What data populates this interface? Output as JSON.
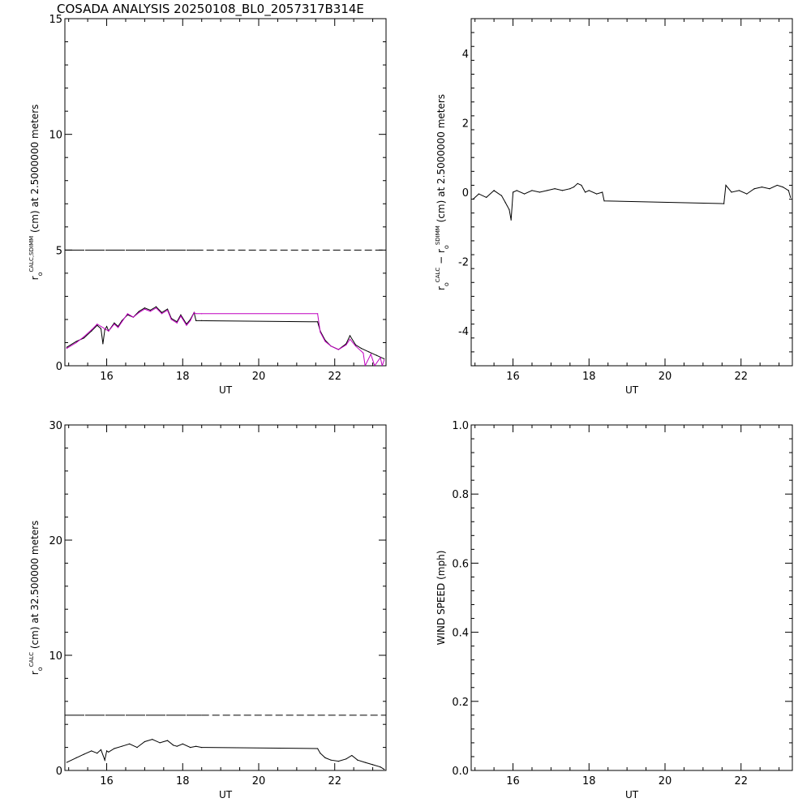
{
  "title": "COSADA ANALYSIS 20250108_BL0_2057317B314E",
  "colors": {
    "axes": "#000000",
    "sdimm_series": "#c000c0",
    "calc_series": "#000000",
    "background": "#ffffff"
  },
  "chart_data": [
    {
      "id": "top-left",
      "type": "line",
      "xlim": [
        14.9,
        23.35
      ],
      "ylim": [
        0,
        15
      ],
      "xticks": [
        16,
        18,
        20,
        22
      ],
      "yticks": [
        0,
        5,
        10,
        15
      ],
      "xlabel": "UT",
      "ylabel": {
        "symbol": "r",
        "sub": "o",
        "sup": "CALC,SDIMM",
        "rest": "(cm)  at  2.5000000 meters"
      },
      "reference_line": {
        "y": 5,
        "dash_start_x": 18.35
      },
      "series": [
        {
          "color": "#000000",
          "x": [
            14.95,
            15.2,
            15.4,
            15.6,
            15.75,
            15.85,
            15.9,
            15.95,
            16.0,
            16.05,
            16.2,
            16.3,
            16.4,
            16.55,
            16.7,
            16.85,
            17.0,
            17.15,
            17.3,
            17.45,
            17.6,
            17.7,
            17.85,
            17.95,
            18.1,
            18.2,
            18.3,
            18.35,
            18.5,
            21.55,
            21.62,
            21.75,
            21.9,
            22.1,
            22.3,
            22.4,
            22.55,
            22.7,
            22.9,
            23.1,
            23.3
          ],
          "y": [
            0.8,
            1.05,
            1.2,
            1.5,
            1.75,
            1.6,
            0.95,
            1.55,
            1.7,
            1.5,
            1.85,
            1.7,
            1.95,
            2.2,
            2.1,
            2.35,
            2.5,
            2.4,
            2.55,
            2.3,
            2.45,
            2.05,
            1.9,
            2.2,
            1.8,
            2.0,
            2.3,
            1.95,
            1.95,
            1.9,
            1.5,
            1.1,
            0.85,
            0.7,
            0.95,
            1.3,
            0.9,
            0.75,
            0.6,
            0.45,
            0.3
          ]
        },
        {
          "color": "#c000c0",
          "x": [
            14.95,
            15.2,
            15.4,
            15.6,
            15.75,
            15.85,
            15.95,
            16.05,
            16.2,
            16.3,
            16.4,
            16.55,
            16.7,
            16.85,
            17.0,
            17.15,
            17.3,
            17.45,
            17.6,
            17.7,
            17.85,
            17.95,
            18.1,
            18.2,
            18.3,
            18.35,
            18.5,
            21.55,
            21.62,
            21.75,
            21.9,
            22.1,
            22.3,
            22.4,
            22.55,
            22.75,
            22.8,
            22.95,
            23.05,
            23.2,
            23.25,
            23.3
          ],
          "y": [
            0.75,
            1.0,
            1.25,
            1.55,
            1.8,
            1.7,
            1.6,
            1.5,
            1.8,
            1.65,
            1.9,
            2.25,
            2.1,
            2.3,
            2.45,
            2.35,
            2.5,
            2.25,
            2.4,
            2.0,
            1.85,
            2.15,
            1.75,
            1.95,
            2.3,
            2.25,
            2.25,
            2.25,
            1.45,
            1.05,
            0.85,
            0.7,
            0.9,
            1.15,
            0.85,
            0.55,
            0.0,
            0.5,
            0.0,
            0.35,
            0.0,
            0.25
          ]
        }
      ]
    },
    {
      "id": "top-right",
      "type": "line",
      "xlim": [
        14.9,
        23.35
      ],
      "ylim": [
        -5,
        5
      ],
      "xticks": [
        16,
        18,
        20,
        22
      ],
      "yticks": [
        -4,
        -2,
        0,
        2,
        4
      ],
      "xlabel": "UT",
      "ylabel": {
        "symbol": "r",
        "sub": "o",
        "sup": "CALC",
        "minus": "−",
        "symbol2": "r",
        "sub2": "o",
        "sup2": "SDIMM",
        "rest": "(cm)  at  2.5000000 meters"
      },
      "series": [
        {
          "color": "#000000",
          "x": [
            14.95,
            15.1,
            15.3,
            15.5,
            15.7,
            15.8,
            15.9,
            15.95,
            16.0,
            16.1,
            16.3,
            16.5,
            16.7,
            16.9,
            17.1,
            17.3,
            17.5,
            17.6,
            17.7,
            17.8,
            17.9,
            18.0,
            18.2,
            18.35,
            18.4,
            21.55,
            21.6,
            21.75,
            21.95,
            22.15,
            22.35,
            22.55,
            22.75,
            22.95,
            23.1,
            23.25,
            23.3
          ],
          "y": [
            -0.2,
            -0.05,
            -0.15,
            0.05,
            -0.1,
            -0.3,
            -0.5,
            -0.8,
            0.0,
            0.05,
            -0.05,
            0.05,
            0.0,
            0.05,
            0.1,
            0.05,
            0.1,
            0.15,
            0.25,
            0.2,
            0.0,
            0.05,
            -0.05,
            0.0,
            -0.25,
            -0.33,
            0.2,
            0.0,
            0.05,
            -0.05,
            0.1,
            0.15,
            0.1,
            0.2,
            0.15,
            0.05,
            -0.15
          ]
        }
      ]
    },
    {
      "id": "bottom-left",
      "type": "line",
      "xlim": [
        14.9,
        23.35
      ],
      "ylim": [
        0,
        30
      ],
      "xticks": [
        16,
        18,
        20,
        22
      ],
      "yticks": [
        0,
        10,
        20,
        30
      ],
      "xlabel": "UT",
      "ylabel": {
        "symbol": "r",
        "sub": "o",
        "sup": "CALC",
        "rest": "(cm)  at  32.500000 meters"
      },
      "reference_line": {
        "y": 4.8,
        "dash_start_x": 18.5
      },
      "series": [
        {
          "color": "#000000",
          "x": [
            14.95,
            15.2,
            15.4,
            15.6,
            15.75,
            15.85,
            15.95,
            16.0,
            16.05,
            16.2,
            16.4,
            16.6,
            16.8,
            17.0,
            17.2,
            17.4,
            17.6,
            17.75,
            17.85,
            18.0,
            18.2,
            18.35,
            18.5,
            21.55,
            21.62,
            21.75,
            21.9,
            22.1,
            22.3,
            22.45,
            22.6,
            22.8,
            23.0,
            23.2,
            23.3
          ],
          "y": [
            0.7,
            1.1,
            1.4,
            1.7,
            1.5,
            1.8,
            0.9,
            1.7,
            1.6,
            1.9,
            2.1,
            2.3,
            2.0,
            2.5,
            2.7,
            2.4,
            2.6,
            2.2,
            2.1,
            2.3,
            2.0,
            2.1,
            2.0,
            1.9,
            1.5,
            1.1,
            0.9,
            0.8,
            1.0,
            1.3,
            0.9,
            0.7,
            0.5,
            0.3,
            0.1
          ]
        }
      ]
    },
    {
      "id": "bottom-right",
      "type": "line",
      "xlim": [
        14.9,
        23.35
      ],
      "ylim": [
        0,
        1
      ],
      "xticks": [
        16,
        18,
        20,
        22
      ],
      "yticks": [
        0.0,
        0.2,
        0.4,
        0.6,
        0.8,
        1.0
      ],
      "xlabel": "UT",
      "ylabel": {
        "text": "WIND SPEED (mph)"
      },
      "series": []
    }
  ]
}
